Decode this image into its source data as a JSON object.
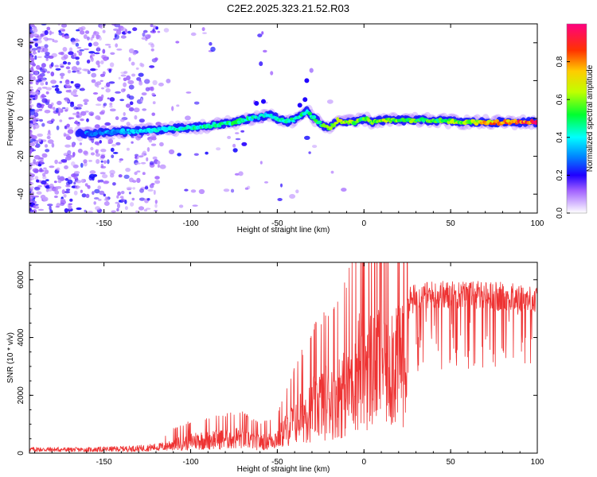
{
  "title": "C2E2.2025.323.21.52.R03",
  "chart_data": [
    {
      "type": "heatmap",
      "xlabel": "Height of straight line (km)",
      "ylabel": "Frequency (Hz)",
      "xlim": [
        -193,
        100
      ],
      "ylim": [
        -50,
        50
      ],
      "x_ticks": [
        -150,
        -100,
        -50,
        0,
        50,
        100
      ],
      "x_tick_labels": [
        "-150",
        "-100",
        "-50",
        "0",
        "50",
        "100"
      ],
      "y_ticks": [
        -40,
        -20,
        0,
        20,
        40
      ],
      "y_tick_labels": [
        "-40",
        "-20",
        "0",
        "20",
        "40"
      ],
      "colorbar": {
        "label": "Normalized spectral amplitude",
        "range": [
          0,
          1
        ],
        "ticks": [
          0.0,
          0.2,
          0.4,
          0.6,
          0.8
        ],
        "tick_labels": [
          "0.0",
          "0.2",
          "0.4",
          "0.6",
          "0.8"
        ]
      },
      "ridge": {
        "x": [
          -160,
          -140,
          -120,
          -100,
          -90,
          -75,
          -65,
          -55,
          -45,
          -38,
          -33,
          -25,
          -20,
          -15,
          -10,
          -5,
          0,
          5,
          10,
          20,
          40,
          60,
          80,
          100
        ],
        "frequency": [
          -8,
          -7,
          -6,
          -5,
          -4,
          -2,
          0,
          2,
          -2,
          0,
          4,
          -3,
          -5,
          -1,
          -2,
          -2,
          0,
          -2,
          -1,
          -1,
          -1,
          -2,
          -2,
          -2
        ],
        "amplitude": [
          0.3,
          0.35,
          0.4,
          0.45,
          0.45,
          0.5,
          0.45,
          0.4,
          0.45,
          0.5,
          0.45,
          0.55,
          0.6,
          0.65,
          0.65,
          0.6,
          0.55,
          0.6,
          0.65,
          0.6,
          0.55,
          0.65,
          0.85,
          0.95
        ]
      }
    },
    {
      "type": "line",
      "xlabel": "Height of straight line (km)",
      "ylabel": "SNR (10 * v/v)",
      "xlim": [
        -193,
        100
      ],
      "ylim": [
        0,
        6600
      ],
      "x_ticks": [
        -150,
        -100,
        -50,
        0,
        50,
        100
      ],
      "x_tick_labels": [
        "-150",
        "-100",
        "-50",
        "0",
        "50",
        "100"
      ],
      "y_ticks": [
        0,
        2000,
        4000,
        6000
      ],
      "y_tick_labels": [
        "0",
        "2000",
        "4000",
        "6000"
      ],
      "color": "#ee3333",
      "envelope": {
        "x": [
          -193,
          -160,
          -130,
          -115,
          -110,
          -100,
          -80,
          -70,
          -60,
          -50,
          -40,
          -30,
          -20,
          -10,
          -5,
          0,
          5,
          10,
          15,
          20,
          25,
          30,
          40,
          60,
          80,
          100
        ],
        "value": [
          200,
          180,
          250,
          350,
          500,
          650,
          800,
          850,
          600,
          800,
          1800,
          2500,
          3000,
          3500,
          4600,
          5000,
          4800,
          5200,
          5000,
          5200,
          5500,
          5600,
          5700,
          5700,
          5650,
          5500
        ]
      }
    }
  ]
}
